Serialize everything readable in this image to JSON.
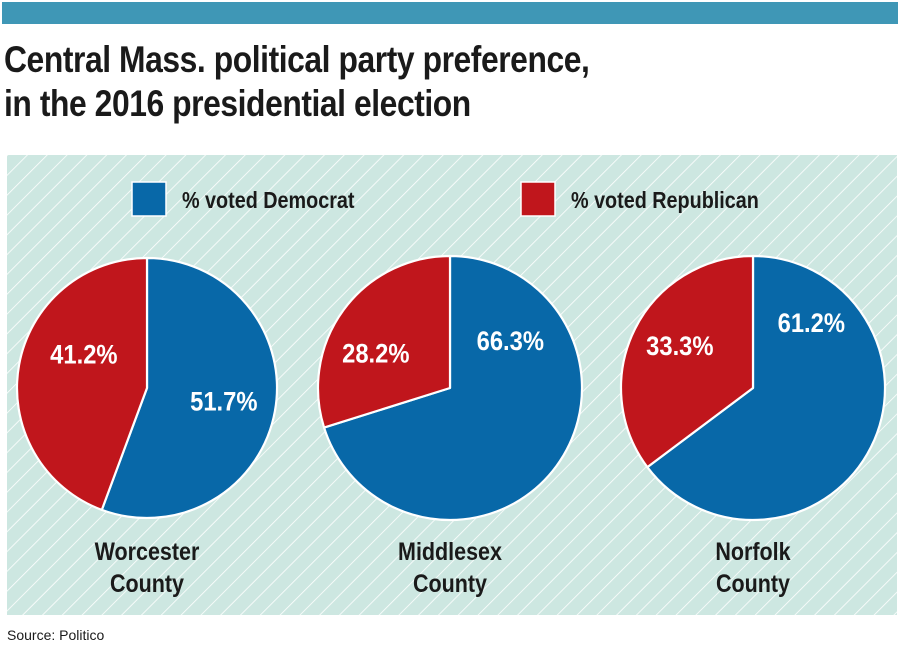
{
  "header": {
    "title_line1": "Central Mass. political party preference,",
    "title_line2": "in the 2016 presidential election"
  },
  "colors": {
    "democrat": "#0868a8",
    "republican": "#c0161c",
    "background": "#cde7e1",
    "hatch": "#ffffff",
    "top_bar": "#3f97b6"
  },
  "legend": {
    "democrat_label": "% voted Democrat",
    "republican_label": "% voted Republican"
  },
  "chart_data": [
    {
      "type": "pie",
      "title": "Worcester County",
      "label_line1": "Worcester",
      "label_line2": "County",
      "slices": [
        {
          "name": "% voted Democrat",
          "value": 51.7,
          "label": "51.7%"
        },
        {
          "name": "% voted Republican",
          "value": 41.2,
          "label": "41.2%"
        }
      ]
    },
    {
      "type": "pie",
      "title": "Middlesex County",
      "label_line1": "Middlesex",
      "label_line2": "County",
      "slices": [
        {
          "name": "% voted Democrat",
          "value": 66.3,
          "label": "66.3%"
        },
        {
          "name": "% voted Republican",
          "value": 28.2,
          "label": "28.2%"
        }
      ]
    },
    {
      "type": "pie",
      "title": "Norfolk County",
      "label_line1": "Norfolk",
      "label_line2": "County",
      "slices": [
        {
          "name": "% voted Democrat",
          "value": 61.2,
          "label": "61.2%"
        },
        {
          "name": "% voted Republican",
          "value": 33.3,
          "label": "33.3%"
        }
      ]
    }
  ],
  "footer": {
    "source": "Source: Politico"
  }
}
